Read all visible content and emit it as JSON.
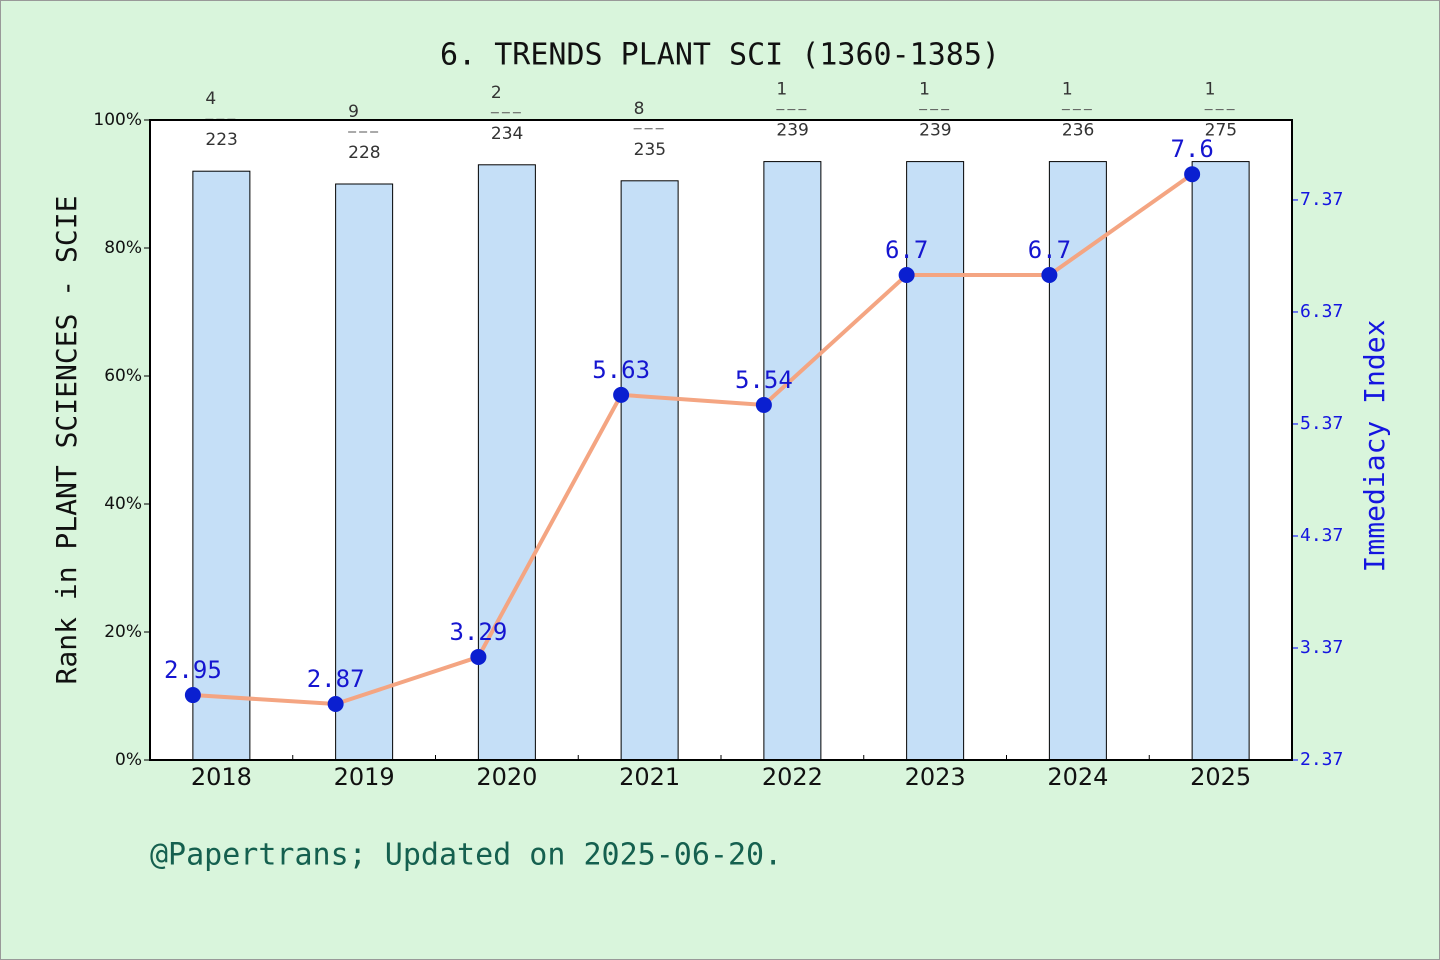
{
  "chart_data": {
    "type": "bar",
    "title": "6. TRENDS PLANT SCI (1360-1385)",
    "ylabel": "Rank in PLANT SCIENCES - SCIE",
    "y2label": "Immediacy Index",
    "footer": "@Papertrans; Updated on 2025-06-20.",
    "categories": [
      "2018",
      "2019",
      "2020",
      "2021",
      "2022",
      "2023",
      "2024",
      "2025"
    ],
    "ranks": [
      4,
      9,
      2,
      8,
      1,
      1,
      1,
      1
    ],
    "totals": [
      223,
      228,
      234,
      235,
      239,
      239,
      236,
      275
    ],
    "series": [
      {
        "type": "bar",
        "color": "#c5dff7",
        "values": [
          92,
          90,
          93,
          90.5,
          93.5,
          93.5,
          93.5,
          93.5
        ]
      },
      {
        "type": "line",
        "axis": "y2",
        "color": "#f4a582",
        "marker_color": "#0a1fd0",
        "values": [
          2.95,
          2.87,
          3.29,
          5.63,
          5.54,
          6.7,
          6.7,
          7.6
        ]
      }
    ],
    "ylim": [
      0,
      100
    ],
    "yticks": [
      {
        "value": 0,
        "label": "0%"
      },
      {
        "value": 20,
        "label": "20%"
      },
      {
        "value": 40,
        "label": "40%"
      },
      {
        "value": 60,
        "label": "60%"
      },
      {
        "value": 80,
        "label": "80%"
      },
      {
        "value": 100,
        "label": "100%"
      }
    ],
    "y2lim": [
      2.37,
      8.084
    ],
    "y2ticks": [
      2.37,
      3.37,
      4.37,
      5.37,
      6.37,
      7.37
    ]
  }
}
